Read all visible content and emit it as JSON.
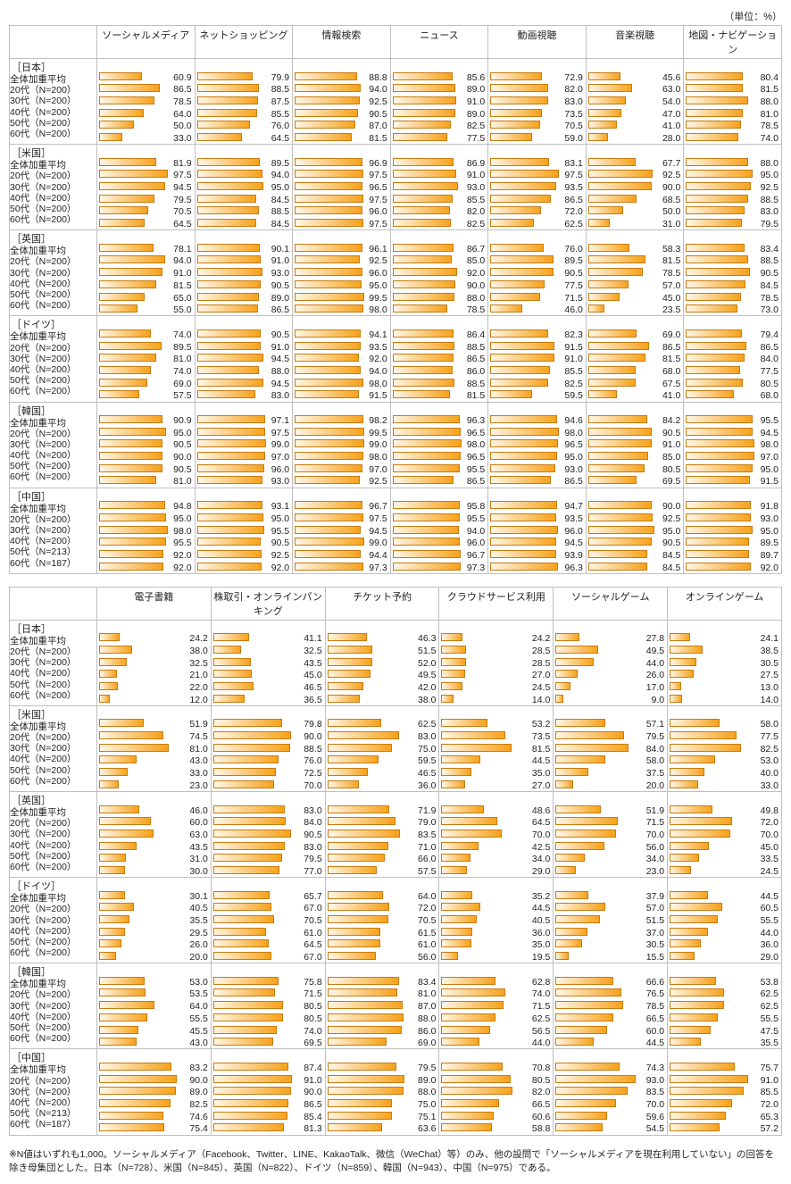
{
  "unit_label": "（単位：%）",
  "bar_gradient": {
    "from": "#fff6e5",
    "to": "#f7a21a"
  },
  "bar_border": "#c77b12",
  "grid_border": "#bfbfbf",
  "font_family": "Hiragino Kaku Gothic Pro, Meiryo, sans-serif",
  "row_labels": [
    "全体加重平均",
    "20代（N=200）",
    "30代（N=200）",
    "40代（N=200）",
    "50代（N=200）",
    "60代（N=200）"
  ],
  "row_labels_china": [
    "全体加重平均",
    "20代（N=200）",
    "30代（N=200）",
    "40代（N=200）",
    "50代（N=213）",
    "60代（N=187）"
  ],
  "countries": [
    "［日本］",
    "［米国］",
    "［英国］",
    "［ドイツ］",
    "［韓国］",
    "［中国］"
  ],
  "table1": {
    "label_col_width": 98,
    "cols": [
      "ソーシャルメディア",
      "ネットショッピング",
      "情報検索",
      "ニュース",
      "動画視聴",
      "音楽視聴",
      "地図・ナビゲーション"
    ],
    "data": [
      [
        [
          60.9,
          79.9,
          88.8,
          85.6,
          72.9,
          45.6,
          80.4
        ],
        [
          86.5,
          88.5,
          94.0,
          89.0,
          82.0,
          63.0,
          81.5
        ],
        [
          78.5,
          87.5,
          92.5,
          91.0,
          83.0,
          54.0,
          88.0
        ],
        [
          64.0,
          85.5,
          90.5,
          89.0,
          73.5,
          47.0,
          81.0
        ],
        [
          50.0,
          76.0,
          87.0,
          82.5,
          70.5,
          41.0,
          78.5
        ],
        [
          33.0,
          64.5,
          81.5,
          77.5,
          59.0,
          28.0,
          74.0
        ]
      ],
      [
        [
          81.9,
          89.5,
          96.9,
          86.9,
          83.1,
          67.7,
          88.0
        ],
        [
          97.5,
          94.0,
          97.5,
          91.0,
          97.5,
          92.5,
          95.0
        ],
        [
          94.5,
          95.0,
          96.5,
          93.0,
          93.5,
          90.0,
          92.5
        ],
        [
          79.5,
          84.5,
          97.5,
          85.5,
          86.5,
          68.5,
          88.5
        ],
        [
          70.5,
          88.5,
          96.0,
          82.0,
          72.0,
          50.0,
          83.0
        ],
        [
          64.5,
          84.5,
          97.5,
          82.5,
          62.5,
          31.0,
          79.5
        ]
      ],
      [
        [
          78.1,
          90.1,
          96.1,
          86.7,
          76.0,
          58.3,
          83.4
        ],
        [
          94.0,
          91.0,
          92.5,
          85.0,
          89.5,
          81.5,
          88.5
        ],
        [
          91.0,
          93.0,
          96.0,
          92.0,
          90.5,
          78.5,
          90.5
        ],
        [
          81.5,
          90.5,
          95.0,
          90.0,
          77.5,
          57.0,
          84.5
        ],
        [
          65.0,
          89.0,
          99.5,
          88.0,
          71.5,
          45.0,
          78.5
        ],
        [
          55.0,
          86.5,
          98.0,
          78.5,
          46.0,
          23.5,
          73.0
        ]
      ],
      [
        [
          74.0,
          90.5,
          94.1,
          86.4,
          82.3,
          69.0,
          79.4
        ],
        [
          89.5,
          91.0,
          93.5,
          88.5,
          91.5,
          86.5,
          86.5
        ],
        [
          81.0,
          94.5,
          92.0,
          86.5,
          91.0,
          81.5,
          84.0
        ],
        [
          74.0,
          88.0,
          94.0,
          86.0,
          85.5,
          68.0,
          77.5
        ],
        [
          69.0,
          94.5,
          98.0,
          88.5,
          82.5,
          67.5,
          80.5
        ],
        [
          57.5,
          83.0,
          91.5,
          81.5,
          59.5,
          41.0,
          68.0
        ]
      ],
      [
        [
          90.9,
          97.1,
          98.2,
          96.3,
          94.6,
          84.2,
          95.5
        ],
        [
          95.0,
          97.5,
          99.5,
          96.5,
          98.0,
          90.5,
          94.5
        ],
        [
          90.5,
          99.0,
          99.0,
          98.0,
          96.5,
          91.0,
          98.0
        ],
        [
          90.0,
          97.0,
          98.0,
          96.5,
          95.0,
          85.0,
          97.0
        ],
        [
          90.5,
          96.0,
          97.0,
          95.5,
          93.0,
          80.5,
          95.0
        ],
        [
          81.0,
          93.0,
          92.5,
          86.5,
          86.5,
          69.5,
          91.5
        ]
      ],
      [
        [
          94.8,
          93.1,
          96.7,
          95.8,
          94.7,
          90.0,
          91.8
        ],
        [
          95.0,
          95.0,
          97.5,
          95.5,
          93.5,
          92.5,
          93.0
        ],
        [
          98.0,
          95.5,
          94.5,
          94.0,
          96.0,
          95.0,
          95.0
        ],
        [
          95.5,
          90.5,
          99.0,
          96.0,
          94.5,
          90.5,
          89.5
        ],
        [
          92.0,
          92.5,
          94.4,
          96.7,
          93.9,
          84.5,
          89.7
        ],
        [
          92.0,
          92.0,
          97.3,
          97.3,
          96.3,
          84.5,
          92.0
        ]
      ]
    ]
  },
  "table2": {
    "label_col_width": 98,
    "cols": [
      "電子書籍",
      "株取引・オンラインパンキング",
      "チケット予約",
      "クラウドサービス利用",
      "ソーシャルゲーム",
      "オンラインゲーム"
    ],
    "data": [
      [
        [
          24.2,
          41.1,
          46.3,
          24.2,
          27.8,
          24.1
        ],
        [
          38.0,
          32.5,
          51.5,
          28.5,
          49.5,
          38.5
        ],
        [
          32.5,
          43.5,
          52.0,
          28.5,
          44.0,
          30.5
        ],
        [
          21.0,
          45.0,
          49.5,
          27.0,
          26.0,
          27.5
        ],
        [
          22.0,
          46.5,
          42.0,
          24.5,
          17.0,
          13.0
        ],
        [
          12.0,
          36.5,
          38.0,
          14.0,
          9.0,
          14.0
        ]
      ],
      [
        [
          51.9,
          79.8,
          62.5,
          53.2,
          57.1,
          58.0
        ],
        [
          74.5,
          90.0,
          83.0,
          73.5,
          79.5,
          77.5
        ],
        [
          81.0,
          88.5,
          75.0,
          81.5,
          84.0,
          82.5
        ],
        [
          43.0,
          76.0,
          59.5,
          44.5,
          58.0,
          53.0
        ],
        [
          33.0,
          72.5,
          46.5,
          35.0,
          37.5,
          40.0
        ],
        [
          23.0,
          70.0,
          36.0,
          27.0,
          20.0,
          33.0
        ]
      ],
      [
        [
          46.0,
          83.0,
          71.9,
          48.6,
          51.9,
          49.8
        ],
        [
          60.0,
          84.0,
          79.0,
          64.5,
          71.5,
          72.0
        ],
        [
          63.0,
          90.5,
          83.5,
          70.0,
          70.0,
          70.0
        ],
        [
          43.5,
          83.0,
          71.0,
          42.5,
          56.0,
          45.0
        ],
        [
          31.0,
          79.5,
          66.0,
          34.0,
          34.0,
          33.5
        ],
        [
          30.0,
          77.0,
          57.5,
          29.0,
          23.0,
          24.5
        ]
      ],
      [
        [
          30.1,
          65.7,
          64.0,
          35.2,
          37.9,
          44.5
        ],
        [
          40.5,
          67.0,
          72.0,
          44.5,
          57.0,
          60.5
        ],
        [
          35.5,
          70.5,
          70.5,
          40.5,
          51.5,
          55.5
        ],
        [
          29.5,
          61.0,
          61.5,
          36.0,
          37.0,
          44.0
        ],
        [
          26.0,
          64.5,
          61.0,
          35.0,
          30.5,
          36.0
        ],
        [
          20.0,
          67.0,
          56.0,
          19.5,
          15.5,
          29.0
        ]
      ],
      [
        [
          53.0,
          75.8,
          83.4,
          62.8,
          66.6,
          53.8
        ],
        [
          53.5,
          71.5,
          81.0,
          74.0,
          76.5,
          62.5
        ],
        [
          64.0,
          80.5,
          87.0,
          71.5,
          78.5,
          62.5
        ],
        [
          55.5,
          80.5,
          88.0,
          62.5,
          66.5,
          55.5
        ],
        [
          45.5,
          74.0,
          86.0,
          56.5,
          60.0,
          47.5
        ],
        [
          43.0,
          69.5,
          69.0,
          44.0,
          44.5,
          35.5
        ]
      ],
      [
        [
          83.2,
          87.4,
          79.5,
          70.8,
          74.3,
          75.7
        ],
        [
          90.0,
          91.0,
          89.0,
          80.5,
          93.0,
          91.0
        ],
        [
          89.0,
          90.0,
          88.0,
          82.0,
          83.5,
          85.5
        ],
        [
          82.5,
          86.5,
          75.0,
          66.5,
          70.0,
          72.0
        ],
        [
          74.6,
          85.4,
          75.1,
          60.6,
          59.6,
          65.3
        ],
        [
          75.4,
          81.3,
          63.6,
          58.8,
          54.5,
          57.2
        ]
      ]
    ]
  },
  "footnote": "※N値はいずれも1,000。ソーシャルメディア（Facebook、Twitter、LINE、KakaoTalk、微信（WeChat）等）のみ、他の設問で「ソーシャルメディアを現在利用していない」の回答を除き母集団とした。日本（N=728）、米国（N=845）、英国（N=822）、ドイツ（N=859）、韓国（N=943）、中国（N=975）である。"
}
